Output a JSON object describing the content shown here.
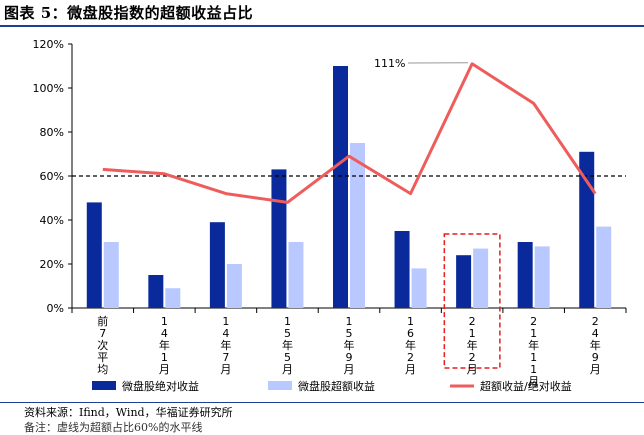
{
  "header": {
    "title": "图表 5：微盘股指数的超额收益占比"
  },
  "footer": {
    "source": "资料来源：Ifind，Wind，华福证券研究所",
    "note": "备注：虚线为超额占比60%的水平线"
  },
  "chart_data": {
    "type": "bar",
    "categories": [
      "前7次平均",
      "14年1月",
      "14年7月",
      "15年5月",
      "15年9月",
      "16年2月",
      "21年2月",
      "21年11月",
      "24年9月"
    ],
    "series": [
      {
        "name": "微盘股绝对收益",
        "type": "bar",
        "color": "#0a2a9c",
        "values": [
          48,
          15,
          39,
          63,
          110,
          35,
          24,
          30,
          71
        ]
      },
      {
        "name": "微盘股超额收益",
        "type": "bar",
        "color": "#b9c9ff",
        "values": [
          30,
          9,
          20,
          30,
          75,
          18,
          27,
          28,
          37
        ]
      },
      {
        "name": "超额收益/绝对收益",
        "type": "line",
        "color": "#ee5c5c",
        "values": [
          63,
          61,
          52,
          48,
          69,
          52,
          111,
          93,
          52
        ]
      }
    ],
    "reference_line": {
      "value": 60,
      "style": "dashed"
    },
    "annotation": {
      "text": "111%",
      "category_index": 6,
      "series": "超额收益/绝对收益"
    },
    "highlight_category_index": 6,
    "ylim": [
      0,
      120
    ],
    "yticks": [
      "0%",
      "20%",
      "40%",
      "60%",
      "80%",
      "100%",
      "120%"
    ],
    "ytick_values": [
      0,
      20,
      40,
      60,
      80,
      100,
      120
    ],
    "legend_position": "bottom",
    "grid": false
  }
}
